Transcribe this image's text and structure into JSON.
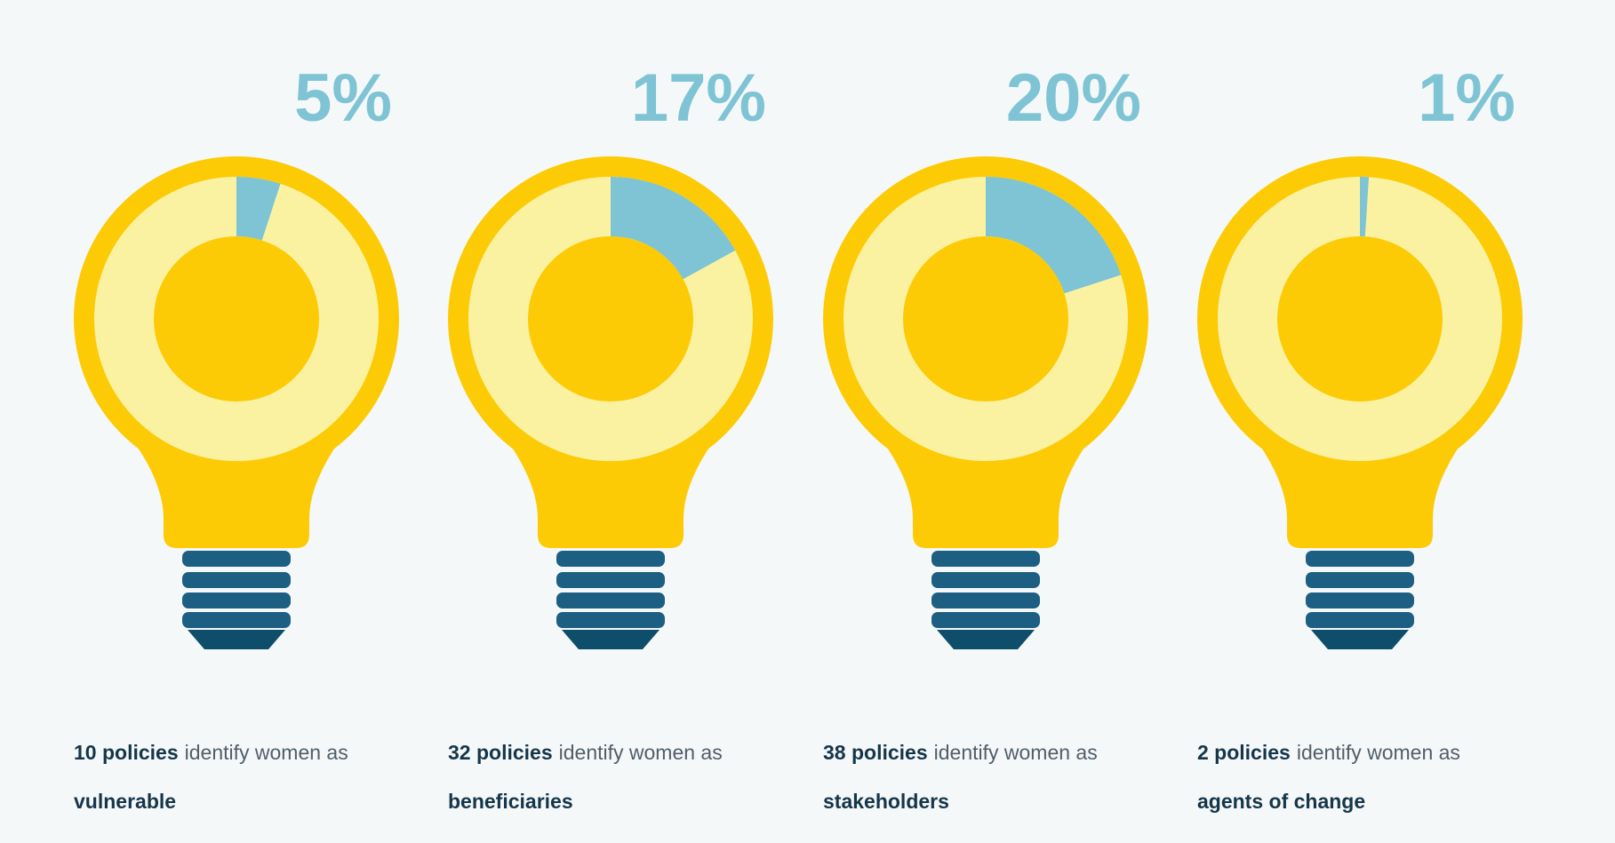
{
  "chart_data": [
    {
      "type": "donut",
      "values": [
        5
      ],
      "value_labels": [
        "5%"
      ],
      "color": "#7ec4d4",
      "track_color": "#faf2a0",
      "caption": {
        "count": "10 policies",
        "text": "identify women as",
        "role": "vulnerable"
      }
    },
    {
      "type": "donut",
      "values": [
        17
      ],
      "value_labels": [
        "17%"
      ],
      "color": "#7ec4d4",
      "track_color": "#faf2a0",
      "caption": {
        "count": "32 policies",
        "text": "identify women as",
        "role": "beneficiaries"
      }
    },
    {
      "type": "donut",
      "values": [
        20
      ],
      "value_labels": [
        "20%"
      ],
      "color": "#7ec4d4",
      "track_color": "#faf2a0",
      "caption": {
        "count": "38 policies",
        "text": "identify women as",
        "role": "stakeholders"
      }
    },
    {
      "type": "donut",
      "values": [
        1
      ],
      "value_labels": [
        "1%"
      ],
      "color": "#7ec4d4",
      "track_color": "#faf2a0",
      "caption": {
        "count": "2 policies",
        "text": "identify women as",
        "role": "agents of change"
      }
    }
  ]
}
